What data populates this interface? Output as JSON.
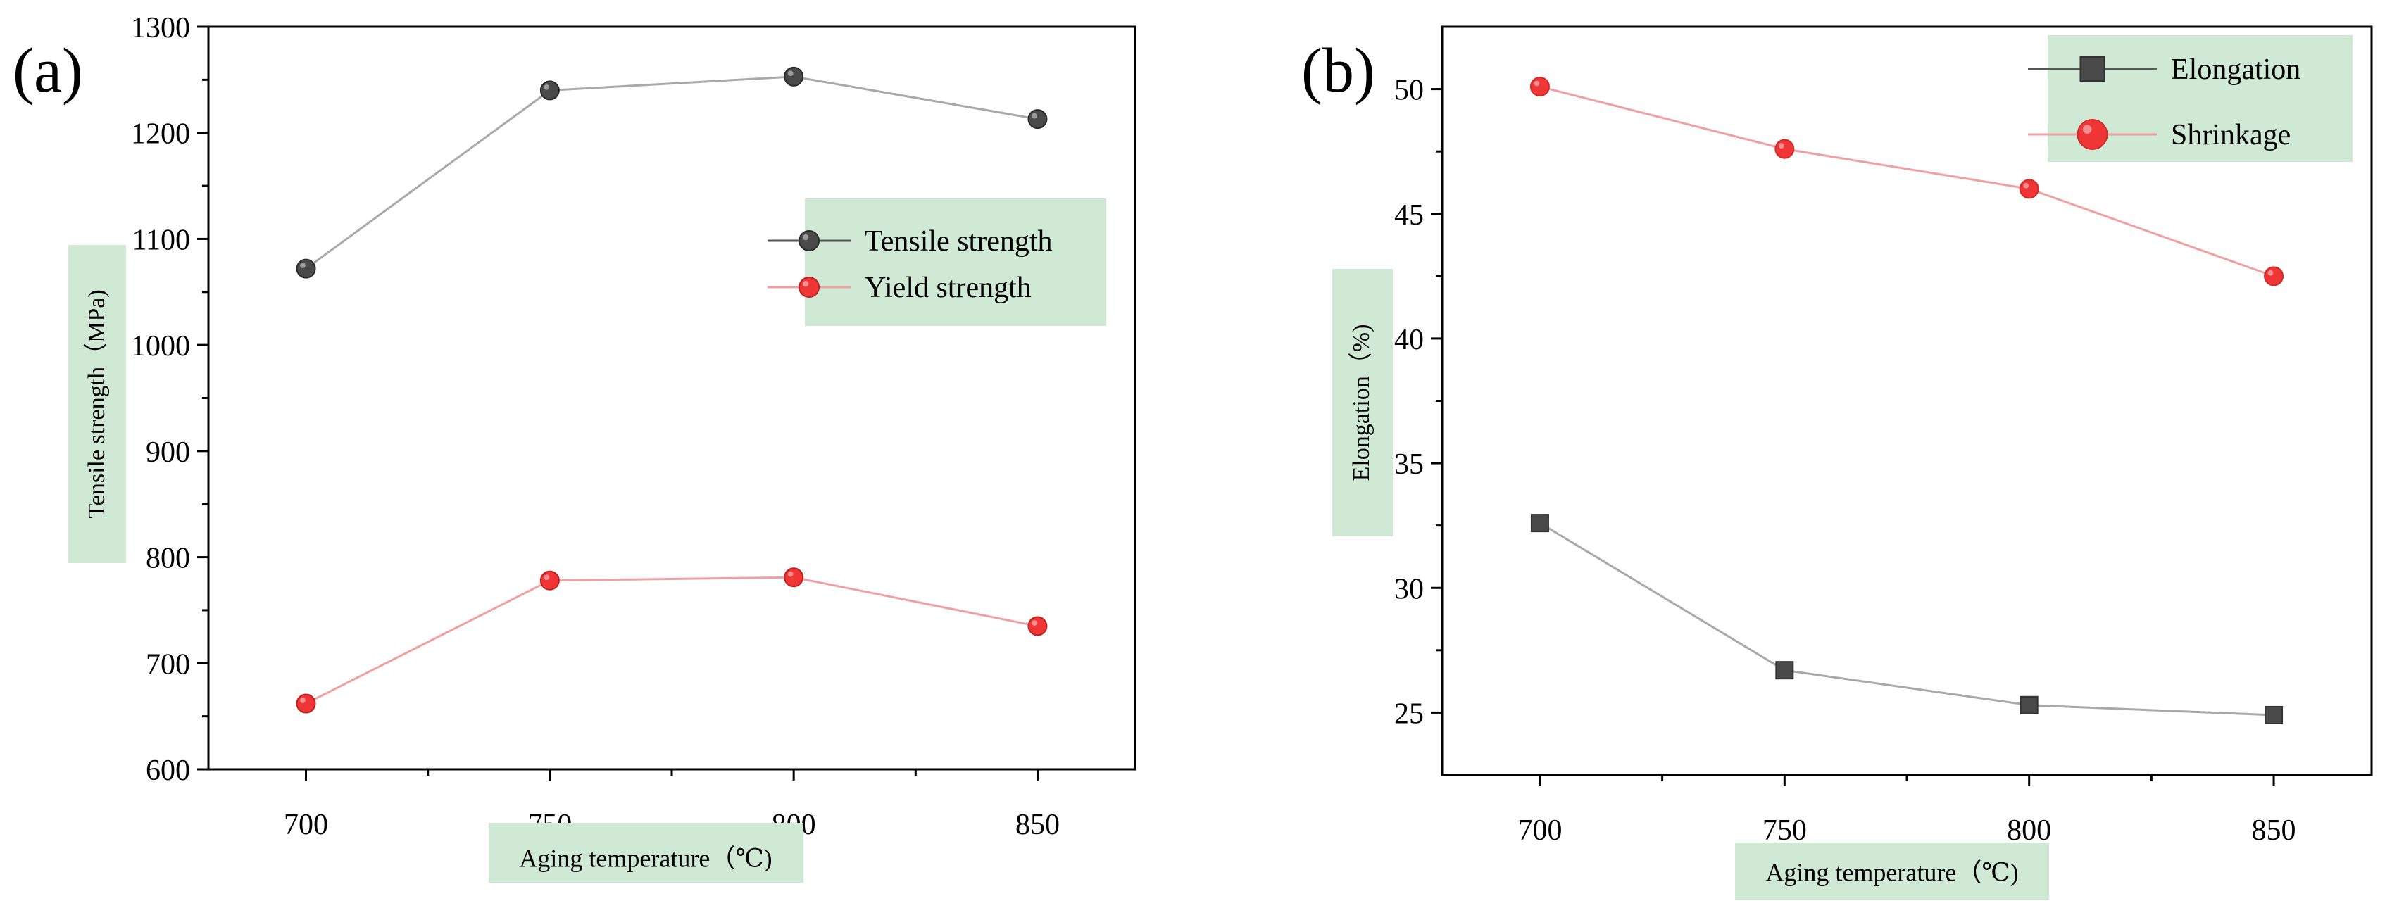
{
  "colors": {
    "gray_series": "#4a4a4a",
    "gray_line": "#a9a9a9",
    "red_series": "#ef3535",
    "red_line": "#f0a0a0",
    "label_highlight": "#cfe9d5",
    "axis": "#000000"
  },
  "chart_data": [
    {
      "type": "line",
      "panel_label": "(a)",
      "x": [
        700,
        750,
        800,
        850
      ],
      "series": [
        {
          "name": "Tensile strength",
          "marker": "circle",
          "values": [
            1072,
            1240,
            1253,
            1213
          ]
        },
        {
          "name": "Yield strength",
          "marker": "circle",
          "values": [
            662,
            778,
            781,
            735
          ]
        }
      ],
      "xlabel": "Aging temperature（℃)",
      "ylabel": "Tensile strength（MPa)",
      "xlim": [
        680,
        870
      ],
      "ylim": [
        600,
        1300
      ],
      "xticks": [
        700,
        750,
        800,
        850
      ],
      "xticklabels": [
        "700",
        "750",
        "800",
        "850"
      ],
      "yticks": [
        600,
        700,
        800,
        900,
        1000,
        1100,
        1200,
        1300
      ],
      "yticklabels": [
        "600",
        "700",
        "800",
        "900",
        "1000",
        "1100",
        "1200",
        "1300"
      ],
      "legend": "upper-right-center",
      "grid": false
    },
    {
      "type": "line",
      "panel_label": "(b)",
      "x": [
        700,
        750,
        800,
        850
      ],
      "series": [
        {
          "name": "Elongation",
          "marker": "square",
          "values": [
            32.6,
            26.7,
            25.3,
            24.9
          ]
        },
        {
          "name": "Shrinkage",
          "marker": "circle",
          "values": [
            50.1,
            47.6,
            46.0,
            42.5
          ]
        }
      ],
      "xlabel": "Aging temperature（℃)",
      "ylabel": "Elongation（%)",
      "xlim": [
        680,
        870
      ],
      "ylim": [
        22.5,
        52.5
      ],
      "xticks": [
        700,
        750,
        800,
        850
      ],
      "xticklabels": [
        "700",
        "750",
        "800",
        "850"
      ],
      "yticks": [
        25,
        30,
        35,
        40,
        45,
        50
      ],
      "yticklabels": [
        "25",
        "30",
        "35",
        "40",
        "45",
        "50"
      ],
      "legend": "top-right",
      "grid": false
    }
  ]
}
